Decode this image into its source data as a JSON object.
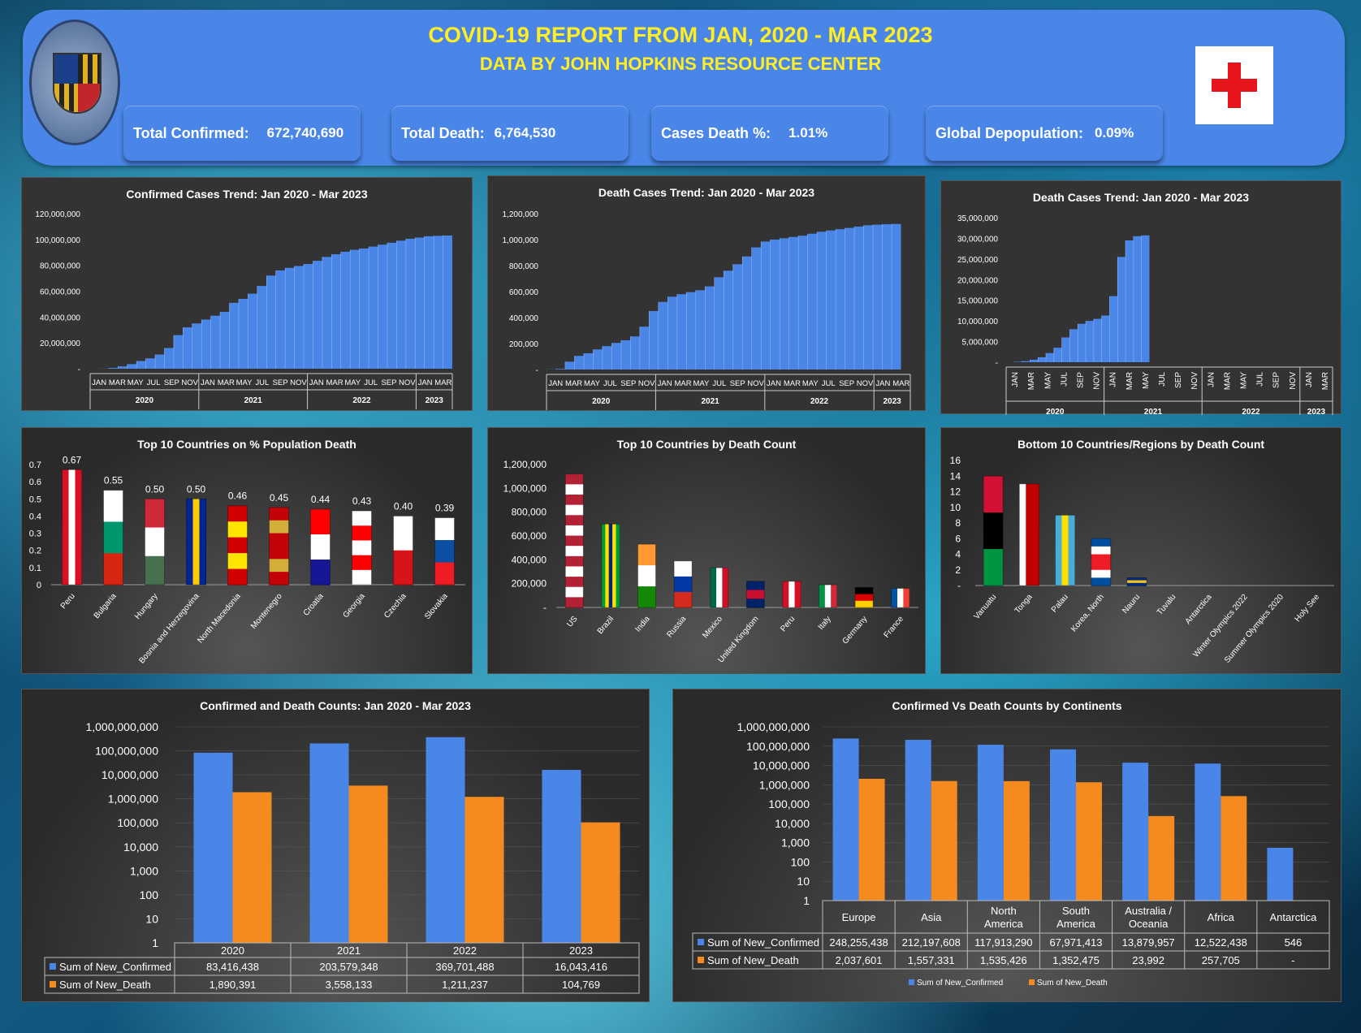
{
  "header": {
    "title": "COVID-19 REPORT FROM JAN, 2020 - MAR 2023",
    "subtitle": "DATA BY JOHN HOPKINS RESOURCE CENTER",
    "kpis": [
      {
        "label": "Total Confirmed:",
        "value": "672,740,690"
      },
      {
        "label": "Total Death:",
        "value": "6,764,530"
      },
      {
        "label": "Cases Death %:",
        "value": "1.01%"
      },
      {
        "label": "Global Depopulation:",
        "value": "0.09%"
      }
    ]
  },
  "colors": {
    "blue": "#4a86e8",
    "orange": "#f58a1f",
    "yellow": "#ffee22",
    "red": "#e8141c"
  },
  "chart_data": [
    {
      "type": "area",
      "title": "Confirmed Cases Trend: Jan 2020 - Mar 2023",
      "month_labels": [
        "JAN",
        "MAR",
        "MAY",
        "JUL",
        "SEP",
        "NOV",
        "JAN",
        "MAR",
        "MAY",
        "JUL",
        "SEP",
        "NOV",
        "JAN",
        "MAR",
        "MAY",
        "JUL",
        "SEP",
        "NOV",
        "JAN",
        "MAR"
      ],
      "years": [
        "2020",
        "2021",
        "2022",
        "2023"
      ],
      "yticks": [
        "-",
        "20,000,000",
        "40,000,000",
        "60,000,000",
        "80,000,000",
        "100,000,000",
        "120,000,000"
      ],
      "ylim": [
        0,
        120000000
      ],
      "values": [
        10000,
        100000,
        600000,
        1800000,
        3500000,
        6000000,
        8000000,
        11000000,
        16000000,
        26000000,
        32000000,
        35000000,
        38000000,
        41000000,
        44000000,
        51000000,
        54000000,
        58000000,
        64000000,
        72000000,
        76000000,
        78000000,
        79500000,
        81000000,
        83500000,
        86500000,
        88500000,
        90500000,
        92000000,
        93000000,
        94500000,
        96000000,
        97500000,
        99000000,
        100500000,
        101500000,
        102500000,
        102800000,
        103000000
      ]
    },
    {
      "type": "area",
      "title": "Death Cases Trend: Jan 2020 - Mar 2023",
      "month_labels": [
        "JAN",
        "MAR",
        "MAY",
        "JUL",
        "SEP",
        "NOV",
        "JAN",
        "MAR",
        "MAY",
        "JUL",
        "SEP",
        "NOV",
        "JAN",
        "MAR",
        "MAY",
        "JUL",
        "SEP",
        "NOV",
        "JAN",
        "MAR"
      ],
      "years": [
        "2020",
        "2021",
        "2022",
        "2023"
      ],
      "yticks": [
        "-",
        "200,000",
        "400,000",
        "600,000",
        "800,000",
        "1,000,000",
        "1,200,000"
      ],
      "ylim": [
        0,
        1200000
      ],
      "values": [
        500,
        5000,
        60000,
        105000,
        125000,
        155000,
        180000,
        205000,
        225000,
        255000,
        330000,
        450000,
        520000,
        560000,
        580000,
        595000,
        610000,
        640000,
        710000,
        760000,
        810000,
        870000,
        940000,
        985000,
        1000000,
        1010000,
        1020000,
        1030000,
        1045000,
        1060000,
        1070000,
        1080000,
        1090000,
        1100000,
        1110000,
        1115000,
        1118000,
        1120000
      ]
    },
    {
      "type": "area",
      "title": "Death Cases Trend: Jan 2020 - Mar 2023",
      "month_labels": [
        "JAN",
        "MAR",
        "MAY",
        "JUL",
        "SEP",
        "NOV",
        "JAN",
        "MAR",
        "MAY",
        "JUL",
        "SEP",
        "NOV",
        "JAN",
        "MAR",
        "MAY",
        "JUL",
        "SEP",
        "NOV",
        "JAN",
        "MAR"
      ],
      "years": [
        "2020",
        "2021",
        "2022",
        "2023"
      ],
      "yticks": [
        "-",
        "5,000,000",
        "10,000,000",
        "15,000,000",
        "20,000,000",
        "25,000,000",
        "30,000,000",
        "35,000,000"
      ],
      "ylim": [
        0,
        35000000
      ],
      "values": [
        0,
        100000,
        250000,
        600000,
        1200000,
        2200000,
        3500000,
        6000000,
        8000000,
        9300000,
        10000000,
        10500000,
        11300000,
        16000000,
        25500000,
        29500000,
        30500000,
        30700000,
        0
      ]
    },
    {
      "type": "bar",
      "title": "Top 10 Countries on % Population Death",
      "categories": [
        "Peru",
        "Bulgaria",
        "Hungary",
        "Bosnia and Herzegovina",
        "North Macedonia",
        "Montenegro",
        "Croatia",
        "Georgia",
        "Czechia",
        "Slovakia"
      ],
      "values": [
        0.67,
        0.55,
        0.5,
        0.5,
        0.46,
        0.45,
        0.44,
        0.43,
        0.4,
        0.39
      ],
      "labels": [
        "0.67",
        "0.55",
        "0.50",
        "0.50",
        "0.46",
        "0.45",
        "0.44",
        "0.43",
        "0.40",
        "0.39"
      ],
      "yticks": [
        "0",
        "0.1",
        "0.2",
        "0.3",
        "0.4",
        "0.5",
        "0.6",
        "0.7"
      ],
      "ylim": [
        0,
        0.7
      ]
    },
    {
      "type": "bar",
      "title": "Top 10 Countries by Death Count",
      "categories": [
        "US",
        "Brazil",
        "India",
        "Russia",
        "Mexico",
        "United Kingdom",
        "Peru",
        "Italy",
        "Germany",
        "France"
      ],
      "values": [
        1120000,
        700000,
        531000,
        390000,
        333000,
        220000,
        219000,
        190000,
        168000,
        160000
      ],
      "yticks": [
        "-",
        "200,000",
        "400,000",
        "600,000",
        "800,000",
        "1,000,000",
        "1,200,000"
      ],
      "ylim": [
        0,
        1200000
      ]
    },
    {
      "type": "bar",
      "title": "Bottom 10 Countries/Regions by Death Count",
      "categories": [
        "Vanuatu",
        "Tonga",
        "Palau",
        "Korea, North",
        "Nauru",
        "Tuvalu",
        "Antarctica",
        "Winter Olympics 2022",
        "Summer Olympics 2020",
        "Holy See"
      ],
      "values": [
        14,
        13,
        9,
        6,
        1,
        0,
        0,
        0,
        0,
        0
      ],
      "yticks": [
        "-",
        "2",
        "4",
        "6",
        "8",
        "10",
        "12",
        "14",
        "16"
      ],
      "ylim": [
        0,
        16
      ]
    },
    {
      "type": "bar",
      "title": "Confirmed and Death Counts: Jan 2020 - Mar 2023",
      "scale": "log",
      "categories": [
        "2020",
        "2021",
        "2022",
        "2023"
      ],
      "yticks": [
        "1",
        "10",
        "100",
        "1,000",
        "10,000",
        "100,000",
        "1,000,000",
        "10,000,000",
        "100,000,000",
        "1,000,000,000"
      ],
      "series": [
        {
          "name": "Sum of New_Confirmed",
          "values": [
            83416438,
            203579348,
            369701488,
            16043416
          ],
          "labels": [
            "83,416,438",
            "203,579,348",
            "369,701,488",
            "16,043,416"
          ]
        },
        {
          "name": "Sum of New_Death",
          "values": [
            1890391,
            3558133,
            1211237,
            104769
          ],
          "labels": [
            "1,890,391",
            "3,558,133",
            "1,211,237",
            "104,769"
          ]
        }
      ]
    },
    {
      "type": "bar",
      "title": "Confirmed Vs Death Counts by Continents",
      "scale": "log",
      "categories": [
        [
          "Europe"
        ],
        [
          "Asia"
        ],
        [
          "North",
          "America"
        ],
        [
          "South",
          "America"
        ],
        [
          "Australia /",
          "Oceania"
        ],
        [
          "Africa"
        ],
        [
          "Antarctica"
        ]
      ],
      "yticks": [
        "1",
        "10",
        "100",
        "1,000",
        "10,000",
        "100,000",
        "1,000,000",
        "10,000,000",
        "100,000,000",
        "1,000,000,000"
      ],
      "series": [
        {
          "name": "Sum of New_Confirmed",
          "values": [
            248255438,
            212197608,
            117913290,
            67971413,
            13879957,
            12522438,
            546
          ],
          "labels": [
            "248,255,438",
            "212,197,608",
            "117,913,290",
            "67,971,413",
            "13,879,957",
            "12,522,438",
            "546"
          ]
        },
        {
          "name": "Sum of New_Death",
          "values": [
            2037601,
            1557331,
            1535426,
            1352475,
            23992,
            257705,
            0
          ],
          "labels": [
            "2,037,601",
            "1,557,331",
            "1,535,426",
            "1,352,475",
            "23,992",
            "257,705",
            "-"
          ]
        }
      ]
    }
  ]
}
